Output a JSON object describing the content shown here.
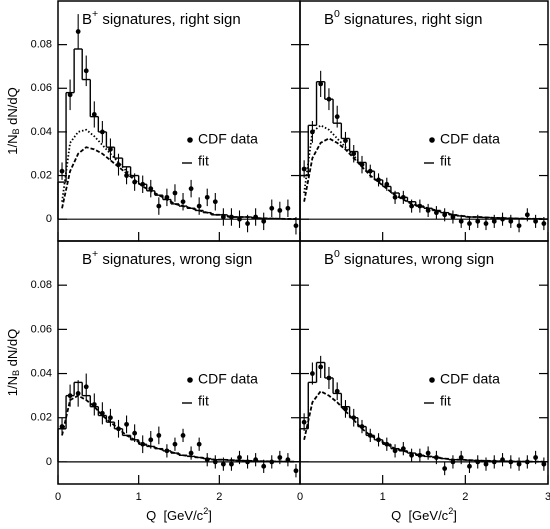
{
  "chart_data": [
    {
      "type": "scatter",
      "title": [
        "B",
        "+",
        " signatures, right sign"
      ],
      "xlim": [
        0,
        3
      ],
      "ylim": [
        -0.01,
        0.1
      ],
      "xticks": [
        0,
        1,
        2,
        3
      ],
      "yticks": [
        0,
        0.02,
        0.04,
        0.06,
        0.08
      ],
      "show_xtick_labels": false,
      "show_ytick_labels": true,
      "hline": 0,
      "ylabel": [
        "1/N",
        "B",
        " dN/dQ"
      ],
      "x": [
        0.05,
        0.15,
        0.25,
        0.35,
        0.45,
        0.55,
        0.65,
        0.75,
        0.85,
        0.95,
        1.05,
        1.15,
        1.25,
        1.35,
        1.45,
        1.55,
        1.65,
        1.75,
        1.85,
        1.95,
        2.05,
        2.15,
        2.25,
        2.35,
        2.45,
        2.55,
        2.65,
        2.75,
        2.85,
        2.95
      ],
      "bins": [
        0,
        0.1,
        0.2,
        0.3,
        0.4,
        0.5,
        0.6,
        0.7,
        0.8,
        0.9,
        1.0,
        1.1,
        1.2,
        1.3,
        1.4,
        1.5,
        1.6,
        1.7,
        1.8,
        1.9,
        2.0,
        2.1,
        2.2,
        2.3,
        2.4,
        2.5,
        2.6,
        2.7,
        2.8,
        2.9,
        3.0
      ],
      "series": [
        {
          "name": "CDF data",
          "style": "points",
          "color": "#000000",
          "values": [
            0.022,
            0.057,
            0.086,
            0.068,
            0.048,
            0.04,
            0.032,
            0.025,
            0.02,
            0.017,
            0.016,
            0.014,
            0.006,
            0.01,
            0.012,
            0.008,
            0.014,
            0.006,
            0.01,
            0.008,
            0.001,
            0.001,
            0.0,
            -0.002,
            0.001,
            -0.001,
            0.005,
            0.004,
            0.005,
            -0.003
          ],
          "errors": [
            0.004,
            0.007,
            0.008,
            0.007,
            0.006,
            0.005,
            0.005,
            0.005,
            0.004,
            0.004,
            0.004,
            0.004,
            0.004,
            0.004,
            0.004,
            0.004,
            0.004,
            0.004,
            0.004,
            0.004,
            0.004,
            0.004,
            0.004,
            0.004,
            0.004,
            0.004,
            0.004,
            0.004,
            0.004,
            0.004
          ]
        },
        {
          "name": "fit",
          "style": "step",
          "color": "#000000",
          "values": [
            0.017,
            0.058,
            0.078,
            0.064,
            0.047,
            0.04,
            0.033,
            0.028,
            0.024,
            0.02,
            0.016,
            0.013,
            0.011,
            0.009,
            0.007,
            0.006,
            0.005,
            0.004,
            0.003,
            0.002,
            0.002,
            0.001,
            0.001,
            0.001,
            0.0005,
            0.0004,
            0.0003,
            0.0002,
            0.0001,
            0.0001
          ]
        },
        {
          "style": "dashed",
          "color": "#000000",
          "values": [
            0.005,
            0.022,
            0.03,
            0.033,
            0.032,
            0.03,
            0.027,
            0.024,
            0.021,
            0.018,
            0.015,
            0.013,
            0.011,
            0.009,
            0.007,
            0.006,
            0.005,
            0.004,
            0.003,
            0.002,
            0.002,
            0.001,
            0.001,
            0.001,
            0.0005,
            0.0004,
            0.0003,
            0.0002,
            0.0001,
            0.0001
          ]
        },
        {
          "style": "dotted",
          "color": "#000000",
          "values": [
            0.008,
            0.035,
            0.04,
            0.041,
            0.038,
            0.034,
            0.03,
            0.026,
            0.022,
            0.019,
            null,
            null,
            null,
            null,
            null,
            null,
            null,
            null,
            null,
            null,
            null,
            null,
            null,
            null,
            null,
            null,
            null,
            null,
            null,
            null
          ]
        }
      ]
    },
    {
      "type": "scatter",
      "title": [
        "B",
        "0",
        " signatures, right sign"
      ],
      "xlim": [
        0,
        3
      ],
      "ylim": [
        -0.01,
        0.1
      ],
      "xticks": [
        0,
        1,
        2,
        3
      ],
      "yticks": [
        0,
        0.02,
        0.04,
        0.06,
        0.08
      ],
      "show_xtick_labels": false,
      "show_ytick_labels": false,
      "hline": 0,
      "x": [
        0.05,
        0.15,
        0.25,
        0.35,
        0.45,
        0.55,
        0.65,
        0.75,
        0.85,
        0.95,
        1.05,
        1.15,
        1.25,
        1.35,
        1.45,
        1.55,
        1.65,
        1.75,
        1.85,
        1.95,
        2.05,
        2.15,
        2.25,
        2.35,
        2.45,
        2.55,
        2.65,
        2.75,
        2.85,
        2.95
      ],
      "bins": [
        0,
        0.1,
        0.2,
        0.3,
        0.4,
        0.5,
        0.6,
        0.7,
        0.8,
        0.9,
        1.0,
        1.1,
        1.2,
        1.3,
        1.4,
        1.5,
        1.6,
        1.7,
        1.8,
        1.9,
        2.0,
        2.1,
        2.2,
        2.3,
        2.4,
        2.5,
        2.6,
        2.7,
        2.8,
        2.9,
        3.0
      ],
      "series": [
        {
          "name": "CDF data",
          "style": "points",
          "color": "#000000",
          "values": [
            0.023,
            0.04,
            0.062,
            0.055,
            0.047,
            0.036,
            0.03,
            0.025,
            0.022,
            0.018,
            0.016,
            0.01,
            0.01,
            0.006,
            0.006,
            0.004,
            0.003,
            0.002,
            0.001,
            -0.001,
            -0.002,
            -0.001,
            -0.002,
            -0.001,
            0.0,
            -0.001,
            -0.003,
            0.002,
            -0.001,
            -0.002
          ],
          "errors": [
            0.004,
            0.005,
            0.006,
            0.005,
            0.005,
            0.004,
            0.004,
            0.004,
            0.003,
            0.003,
            0.003,
            0.003,
            0.003,
            0.003,
            0.003,
            0.003,
            0.003,
            0.003,
            0.003,
            0.003,
            0.003,
            0.003,
            0.003,
            0.003,
            0.003,
            0.003,
            0.003,
            0.003,
            0.003,
            0.003
          ]
        },
        {
          "name": "fit",
          "style": "step",
          "color": "#000000",
          "values": [
            0.02,
            0.043,
            0.063,
            0.055,
            0.044,
            0.037,
            0.031,
            0.026,
            0.022,
            0.018,
            0.015,
            0.012,
            0.01,
            0.008,
            0.006,
            0.005,
            0.004,
            0.003,
            0.002,
            0.0015,
            0.001,
            0.001,
            0.0008,
            0.0006,
            0.0005,
            0.0004,
            0.0003,
            0.0002,
            0.0002,
            0.0001
          ]
        },
        {
          "style": "dashed",
          "color": "#000000",
          "values": [
            0.008,
            0.028,
            0.035,
            0.037,
            0.035,
            0.032,
            0.028,
            0.024,
            0.02,
            0.017,
            0.014,
            0.011,
            0.009,
            0.007,
            0.006,
            0.005,
            0.004,
            0.003,
            0.002,
            0.0015,
            0.001,
            0.001,
            0.0008,
            0.0006,
            0.0005,
            0.0004,
            0.0003,
            0.0002,
            0.0002,
            0.0001
          ]
        },
        {
          "style": "dotted",
          "color": "#000000",
          "values": [
            0.012,
            0.04,
            0.043,
            0.041,
            0.037,
            0.033,
            0.029,
            0.025,
            null,
            null,
            null,
            null,
            null,
            null,
            null,
            null,
            null,
            null,
            null,
            null,
            null,
            null,
            null,
            null,
            null,
            null,
            null,
            null,
            null,
            null
          ]
        }
      ]
    },
    {
      "type": "scatter",
      "title": [
        "B",
        "+",
        " signatures, wrong sign"
      ],
      "xlim": [
        0,
        3
      ],
      "ylim": [
        -0.01,
        0.1
      ],
      "xticks": [
        0,
        1,
        2
      ],
      "yticks": [
        0,
        0.02,
        0.04,
        0.06,
        0.08
      ],
      "show_xtick_labels": true,
      "show_ytick_labels": true,
      "hline": 0,
      "ylabel": [
        "1/N",
        "B",
        " dN/dQ"
      ],
      "xlabel": [
        "Q  [GeV/c",
        "2",
        "]"
      ],
      "x": [
        0.05,
        0.15,
        0.25,
        0.35,
        0.45,
        0.55,
        0.65,
        0.75,
        0.85,
        0.95,
        1.05,
        1.15,
        1.25,
        1.35,
        1.45,
        1.55,
        1.65,
        1.75,
        1.85,
        1.95,
        2.05,
        2.15,
        2.25,
        2.35,
        2.45,
        2.55,
        2.65,
        2.75,
        2.85,
        2.95
      ],
      "bins": [
        0,
        0.1,
        0.2,
        0.3,
        0.4,
        0.5,
        0.6,
        0.7,
        0.8,
        0.9,
        1.0,
        1.1,
        1.2,
        1.3,
        1.4,
        1.5,
        1.6,
        1.7,
        1.8,
        1.9,
        2.0,
        2.1,
        2.2,
        2.3,
        2.4,
        2.5,
        2.6,
        2.7,
        2.8,
        2.9,
        3.0
      ],
      "series": [
        {
          "name": "CDF data",
          "style": "points",
          "color": "#000000",
          "values": [
            0.016,
            0.03,
            0.031,
            0.034,
            0.026,
            0.022,
            0.02,
            0.015,
            0.017,
            0.013,
            0.008,
            0.01,
            0.012,
            0.005,
            0.008,
            0.012,
            0.004,
            0.008,
            0.001,
            0.0,
            -0.001,
            -0.001,
            0.002,
            0.0,
            0.001,
            -0.002,
            0.0,
            0.002,
            0.001,
            -0.004
          ],
          "errors": [
            0.004,
            0.005,
            0.006,
            0.006,
            0.005,
            0.005,
            0.004,
            0.004,
            0.004,
            0.004,
            0.004,
            0.004,
            0.004,
            0.003,
            0.003,
            0.003,
            0.003,
            0.003,
            0.003,
            0.003,
            0.003,
            0.003,
            0.003,
            0.003,
            0.003,
            0.003,
            0.003,
            0.003,
            0.003,
            0.003
          ]
        },
        {
          "name": "fit",
          "style": "step",
          "color": "#000000",
          "values": [
            0.015,
            0.03,
            0.036,
            0.03,
            0.025,
            0.021,
            0.018,
            0.015,
            0.012,
            0.01,
            0.008,
            0.007,
            0.006,
            0.005,
            0.004,
            0.003,
            0.0025,
            0.002,
            0.0015,
            0.001,
            0.001,
            0.0008,
            0.0006,
            0.0005,
            0.0004,
            0.0003,
            0.0002,
            0.0002,
            0.0001,
            0.0001
          ]
        },
        {
          "style": "dashed",
          "color": "#000000",
          "values": [
            0.012,
            0.028,
            0.03,
            0.028,
            0.025,
            0.021,
            0.018,
            0.015,
            0.012,
            0.01,
            0.008,
            0.007,
            0.006,
            0.005,
            0.004,
            0.003,
            0.0025,
            0.002,
            0.0015,
            0.001,
            0.001,
            0.0008,
            0.0006,
            0.0005,
            0.0004,
            0.0003,
            0.0002,
            0.0002,
            0.0001,
            0.0001
          ]
        }
      ]
    },
    {
      "type": "scatter",
      "title": [
        "B",
        "0",
        " signatures, wrong sign"
      ],
      "xlim": [
        0,
        3
      ],
      "ylim": [
        -0.01,
        0.1
      ],
      "xticks": [
        0,
        1,
        2,
        3
      ],
      "yticks": [
        0,
        0.02,
        0.04,
        0.06,
        0.08
      ],
      "show_xtick_labels": true,
      "show_ytick_labels": false,
      "hline": 0,
      "xlabel": [
        "Q  [GeV/c",
        "2",
        "]"
      ],
      "x": [
        0.05,
        0.15,
        0.25,
        0.35,
        0.45,
        0.55,
        0.65,
        0.75,
        0.85,
        0.95,
        1.05,
        1.15,
        1.25,
        1.35,
        1.45,
        1.55,
        1.65,
        1.75,
        1.85,
        1.95,
        2.05,
        2.15,
        2.25,
        2.35,
        2.45,
        2.55,
        2.65,
        2.75,
        2.85,
        2.95
      ],
      "bins": [
        0,
        0.1,
        0.2,
        0.3,
        0.4,
        0.5,
        0.6,
        0.7,
        0.8,
        0.9,
        1.0,
        1.1,
        1.2,
        1.3,
        1.4,
        1.5,
        1.6,
        1.7,
        1.8,
        1.9,
        2.0,
        2.1,
        2.2,
        2.3,
        2.4,
        2.5,
        2.6,
        2.7,
        2.8,
        2.9,
        3.0
      ],
      "series": [
        {
          "name": "CDF data",
          "style": "points",
          "color": "#000000",
          "values": [
            0.018,
            0.04,
            0.043,
            0.038,
            0.032,
            0.024,
            0.02,
            0.016,
            0.012,
            0.01,
            0.008,
            0.005,
            0.006,
            0.003,
            0.003,
            0.004,
            0.002,
            -0.003,
            0.0,
            0.002,
            -0.002,
            0.0,
            -0.001,
            0.0,
            0.001,
            0.0,
            -0.001,
            0.0,
            0.002,
            -0.001
          ],
          "errors": [
            0.004,
            0.005,
            0.005,
            0.005,
            0.004,
            0.004,
            0.004,
            0.003,
            0.003,
            0.003,
            0.003,
            0.003,
            0.003,
            0.003,
            0.003,
            0.003,
            0.003,
            0.003,
            0.003,
            0.003,
            0.003,
            0.003,
            0.003,
            0.003,
            0.003,
            0.003,
            0.003,
            0.003,
            0.003,
            0.003
          ]
        },
        {
          "name": "fit",
          "style": "step",
          "color": "#000000",
          "values": [
            0.015,
            0.036,
            0.045,
            0.038,
            0.031,
            0.025,
            0.02,
            0.016,
            0.012,
            0.01,
            0.008,
            0.006,
            0.005,
            0.004,
            0.003,
            0.0025,
            0.002,
            0.0015,
            0.001,
            0.001,
            0.0008,
            0.0006,
            0.0005,
            0.0004,
            0.0003,
            0.0002,
            0.0002,
            0.0001,
            0.0001,
            0.0001
          ]
        },
        {
          "style": "dashed",
          "color": "#000000",
          "values": [
            0.01,
            0.027,
            0.032,
            0.03,
            0.027,
            0.023,
            0.019,
            0.015,
            0.012,
            0.01,
            0.008,
            0.006,
            0.005,
            0.004,
            0.003,
            0.0025,
            0.002,
            0.0015,
            0.001,
            0.001,
            0.0008,
            0.0006,
            0.0005,
            0.0004,
            0.0003,
            0.0002,
            0.0002,
            0.0001,
            0.0001,
            0.0001
          ]
        }
      ]
    }
  ]
}
